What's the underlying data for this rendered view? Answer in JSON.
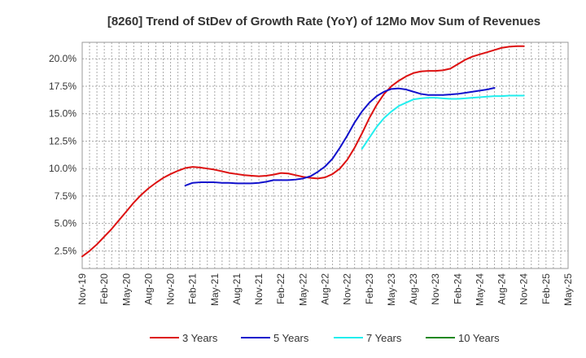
{
  "chart_data": {
    "type": "line",
    "title": "[8260]  Trend of StDev of Growth Rate (YoY) of 12Mo Mov Sum of Revenues",
    "xlabel": "",
    "ylabel": "",
    "grid": true,
    "ylim": [
      0.9,
      21.5
    ],
    "y_ticks": [
      "2.5%",
      "5.0%",
      "7.5%",
      "10.0%",
      "12.5%",
      "15.0%",
      "17.5%",
      "20.0%"
    ],
    "y_tick_values": [
      2.5,
      5.0,
      7.5,
      10.0,
      12.5,
      15.0,
      17.5,
      20.0
    ],
    "x_ticks": [
      "Nov-19",
      "Feb-20",
      "May-20",
      "Aug-20",
      "Nov-20",
      "Feb-21",
      "May-21",
      "Aug-21",
      "Nov-21",
      "Feb-22",
      "May-22",
      "Aug-22",
      "Nov-22",
      "Feb-23",
      "May-23",
      "Aug-23",
      "Nov-23",
      "Feb-24",
      "May-24",
      "Aug-24",
      "Nov-24",
      "Feb-25",
      "May-25"
    ],
    "x_tick_index": [
      0,
      3,
      6,
      9,
      12,
      15,
      18,
      21,
      24,
      27,
      30,
      33,
      36,
      39,
      42,
      45,
      48,
      51,
      54,
      57,
      60,
      63,
      66
    ],
    "legend_position": "bottom",
    "series": [
      {
        "name": "3 Years",
        "color": "#dd1111",
        "start_index": 0,
        "values": [
          2.0,
          2.5,
          3.1,
          3.8,
          4.5,
          5.3,
          6.1,
          6.9,
          7.6,
          8.2,
          8.7,
          9.15,
          9.5,
          9.8,
          10.05,
          10.15,
          10.1,
          10.0,
          9.9,
          9.75,
          9.6,
          9.5,
          9.4,
          9.35,
          9.3,
          9.35,
          9.45,
          9.6,
          9.55,
          9.4,
          9.25,
          9.15,
          9.1,
          9.2,
          9.5,
          10.0,
          10.8,
          11.9,
          13.2,
          14.6,
          15.8,
          16.8,
          17.5,
          18.0,
          18.4,
          18.7,
          18.85,
          18.9,
          18.9,
          18.95,
          19.1,
          19.5,
          19.9,
          20.2,
          20.4,
          20.6,
          20.8,
          21.0,
          21.1,
          21.15,
          21.15
        ]
      },
      {
        "name": "5 Years",
        "color": "#1111cc",
        "start_index": 14,
        "values": [
          8.45,
          8.7,
          8.75,
          8.75,
          8.75,
          8.7,
          8.7,
          8.65,
          8.65,
          8.65,
          8.7,
          8.8,
          8.95,
          8.95,
          8.95,
          9.0,
          9.1,
          9.3,
          9.7,
          10.2,
          10.9,
          11.9,
          13.0,
          14.2,
          15.2,
          16.0,
          16.6,
          17.0,
          17.25,
          17.3,
          17.2,
          17.0,
          16.8,
          16.7,
          16.7,
          16.7,
          16.75,
          16.8,
          16.9,
          17.0,
          17.1,
          17.2,
          17.35
        ]
      },
      {
        "name": "7 Years",
        "color": "#22eeee",
        "start_index": 38,
        "values": [
          11.8,
          12.8,
          13.8,
          14.6,
          15.2,
          15.7,
          16.0,
          16.3,
          16.4,
          16.45,
          16.45,
          16.4,
          16.35,
          16.35,
          16.4,
          16.45,
          16.5,
          16.55,
          16.6,
          16.6,
          16.65,
          16.65,
          16.65
        ]
      },
      {
        "name": "10 Years",
        "color": "#228822",
        "start_index": 0,
        "values": []
      }
    ]
  }
}
